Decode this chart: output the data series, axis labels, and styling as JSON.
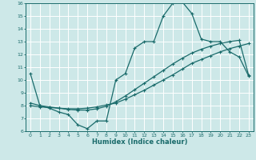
{
  "xlabel": "Humidex (Indice chaleur)",
  "xlim": [
    -0.5,
    23.5
  ],
  "ylim": [
    6,
    16
  ],
  "xticks": [
    0,
    1,
    2,
    3,
    4,
    5,
    6,
    7,
    8,
    9,
    10,
    11,
    12,
    13,
    14,
    15,
    16,
    17,
    18,
    19,
    20,
    21,
    22,
    23
  ],
  "yticks": [
    6,
    7,
    8,
    9,
    10,
    11,
    12,
    13,
    14,
    15,
    16
  ],
  "bg_color": "#cde8e8",
  "line_color": "#1a6b6b",
  "grid_color": "#ffffff",
  "line1_x": [
    0,
    1,
    2,
    3,
    4,
    5,
    6,
    7,
    8,
    9,
    10,
    11,
    12,
    13,
    14,
    15,
    16,
    17,
    18,
    19,
    20,
    21,
    22,
    23
  ],
  "line1_y": [
    10.5,
    8.0,
    7.8,
    7.5,
    7.3,
    6.5,
    6.2,
    6.8,
    6.8,
    10.0,
    10.5,
    12.5,
    13.0,
    13.0,
    15.0,
    16.0,
    16.1,
    15.2,
    13.2,
    13.0,
    13.0,
    12.2,
    11.8,
    10.3
  ],
  "line2_x": [
    0,
    1,
    2,
    3,
    4,
    5,
    6,
    7,
    8,
    9,
    10,
    11,
    12,
    13,
    14,
    15,
    16,
    17,
    18,
    19,
    20,
    21,
    22,
    23
  ],
  "line2_y": [
    8.0,
    7.9,
    7.85,
    7.8,
    7.75,
    7.75,
    7.8,
    7.9,
    8.05,
    8.2,
    8.5,
    8.85,
    9.2,
    9.6,
    10.0,
    10.4,
    10.85,
    11.3,
    11.6,
    11.9,
    12.2,
    12.45,
    12.65,
    12.85
  ],
  "line3_x": [
    0,
    1,
    2,
    3,
    4,
    5,
    6,
    7,
    8,
    9,
    10,
    11,
    12,
    13,
    14,
    15,
    16,
    17,
    18,
    19,
    20,
    21,
    22,
    23
  ],
  "line3_y": [
    8.2,
    8.0,
    7.9,
    7.8,
    7.7,
    7.65,
    7.65,
    7.75,
    7.95,
    8.3,
    8.75,
    9.25,
    9.75,
    10.25,
    10.75,
    11.25,
    11.7,
    12.1,
    12.4,
    12.65,
    12.85,
    13.0,
    13.1,
    10.35
  ]
}
